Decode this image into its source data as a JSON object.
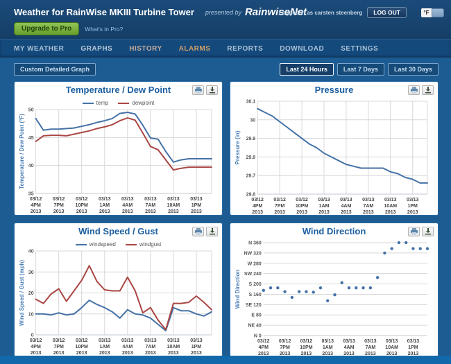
{
  "header": {
    "title": "Weather for RainWise MKIII Turbine Tower",
    "presented_by_label": "presented by",
    "brand": "RainwiseNet",
    "logged_in_text": "Logged in as carsten steenberg",
    "logout_label": "LOG OUT",
    "unit_label": "°F",
    "upgrade_label": "Upgrade to Pro",
    "whats_in_pro_label": "What's in Pro?"
  },
  "nav": {
    "items": [
      {
        "label": "MY WEATHER",
        "color": "#a9c0d4"
      },
      {
        "label": "GRAPHS",
        "color": "#b7c9d8"
      },
      {
        "label": "HISTORY",
        "color": "#c4ab9c"
      },
      {
        "label": "ALARMS",
        "color": "#cf9f68"
      },
      {
        "label": "REPORTS",
        "color": "#a9c0d4"
      },
      {
        "label": "DOWNLOAD",
        "color": "#a9c0d4"
      },
      {
        "label": "SETTINGS",
        "color": "#a9c0d4"
      }
    ]
  },
  "toolbar": {
    "custom_graph_label": "Custom Detailed Graph",
    "range_buttons": [
      {
        "label": "Last 24 Hours",
        "active": true
      },
      {
        "label": "Last 7 Days",
        "active": false
      },
      {
        "label": "Last 30 Days",
        "active": false
      }
    ]
  },
  "colors": {
    "series_blue": "#4572A7",
    "series_red": "#AA4643",
    "page_bg": "#1d5c92",
    "header_bg": "#17426c",
    "nav_bg": "#14497c",
    "footer_bg": "#1169ab",
    "panel_border": "#2a6ca5",
    "chart_title": "#1c5fa0",
    "accent_green": "#76ac3a",
    "alarm_orange": "#cf9f68"
  },
  "chart_data": [
    {
      "type": "line",
      "title": "Temperature / Dew Point",
      "ylabel": "Temperature / Dew Point (°F)",
      "ylim": [
        35,
        50
      ],
      "ytick_values": [
        35,
        40,
        45,
        50
      ],
      "ytick_labels": [
        "35",
        "40",
        "45",
        "50"
      ],
      "grid_vertical": true,
      "x_tick_indices": [
        0,
        3,
        6,
        9,
        12,
        15,
        18,
        21
      ],
      "x_tick_labels": [
        [
          "03/12",
          "4PM",
          "2013"
        ],
        [
          "03/12",
          "7PM",
          "2013"
        ],
        [
          "03/12",
          "10PM",
          "2013"
        ],
        [
          "03/13",
          "1AM",
          "2013"
        ],
        [
          "03/13",
          "4AM",
          "2013"
        ],
        [
          "03/13",
          "7AM",
          "2013"
        ],
        [
          "03/13",
          "10AM",
          "2013"
        ],
        [
          "03/13",
          "1PM",
          "2013"
        ]
      ],
      "series": [
        {
          "name": "temp",
          "color": "#4572A7",
          "values": [
            48.4,
            46.3,
            46.5,
            46.5,
            46.6,
            46.7,
            47.0,
            47.3,
            47.7,
            48.0,
            48.4,
            49.3,
            49.5,
            49.2,
            47.2,
            44.9,
            44.7,
            42.5,
            40.6,
            41.0,
            41.2,
            41.2,
            41.2,
            41.2
          ]
        },
        {
          "name": "dewpoint",
          "color": "#AA4643",
          "values": [
            44.3,
            45.3,
            45.4,
            45.4,
            45.3,
            45.6,
            45.9,
            46.2,
            46.6,
            46.9,
            47.3,
            48.0,
            48.5,
            48.1,
            45.8,
            43.4,
            42.8,
            41.0,
            39.2,
            39.5,
            39.7,
            39.7,
            39.7,
            39.7
          ]
        }
      ]
    },
    {
      "type": "line",
      "title": "Pressure",
      "ylabel": "Pressure (in)",
      "ylim": [
        29.6,
        30.1
      ],
      "ytick_values": [
        29.6,
        29.7,
        29.8,
        29.9,
        30,
        30.1
      ],
      "ytick_labels": [
        "29.6",
        "29.7",
        "29.8",
        "29.9",
        "30",
        "30.1"
      ],
      "grid_vertical": true,
      "x_tick_indices": [
        0,
        3,
        6,
        9,
        12,
        15,
        18,
        21
      ],
      "x_tick_labels": [
        [
          "03/12",
          "4PM",
          "2013"
        ],
        [
          "03/12",
          "7PM",
          "2013"
        ],
        [
          "03/12",
          "10PM",
          "2013"
        ],
        [
          "03/13",
          "1AM",
          "2013"
        ],
        [
          "03/13",
          "4AM",
          "2013"
        ],
        [
          "03/13",
          "7AM",
          "2013"
        ],
        [
          "03/13",
          "10AM",
          "2013"
        ],
        [
          "03/13",
          "1PM",
          "2013"
        ]
      ],
      "series": [
        {
          "name": "pressure",
          "color": "#4572A7",
          "values": [
            30.06,
            30.04,
            30.02,
            29.99,
            29.96,
            29.93,
            29.9,
            29.87,
            29.85,
            29.82,
            29.8,
            29.78,
            29.76,
            29.75,
            29.74,
            29.74,
            29.74,
            29.74,
            29.72,
            29.71,
            29.69,
            29.68,
            29.66,
            29.66
          ]
        }
      ]
    },
    {
      "type": "line",
      "title": "Wind Speed / Gust",
      "ylabel": "Wind Speed / Gust (mph)",
      "ylim": [
        0,
        40
      ],
      "ytick_values": [
        0,
        10,
        20,
        30,
        40
      ],
      "ytick_labels": [
        "0",
        "10",
        "20",
        "30",
        "40"
      ],
      "grid_vertical": true,
      "x_tick_indices": [
        0,
        3,
        6,
        9,
        12,
        15,
        18,
        21
      ],
      "x_tick_labels": [
        [
          "03/12",
          "4PM",
          "2013"
        ],
        [
          "03/12",
          "7PM",
          "2013"
        ],
        [
          "03/12",
          "10PM",
          "2013"
        ],
        [
          "03/13",
          "1AM",
          "2013"
        ],
        [
          "03/13",
          "4AM",
          "2013"
        ],
        [
          "03/13",
          "7AM",
          "2013"
        ],
        [
          "03/13",
          "10AM",
          "2013"
        ],
        [
          "03/13",
          "1PM",
          "2013"
        ]
      ],
      "series": [
        {
          "name": "windspeed",
          "color": "#4572A7",
          "values": [
            10,
            10,
            9.5,
            10.5,
            9.5,
            10,
            13,
            16.5,
            14.5,
            13,
            11,
            8,
            12,
            10,
            9.5,
            8,
            5,
            2,
            13,
            11.5,
            11.5,
            10,
            9,
            11
          ]
        },
        {
          "name": "windgust",
          "color": "#AA4643",
          "values": [
            17,
            15,
            19.5,
            22,
            16,
            21,
            26,
            33,
            25.5,
            21.5,
            21,
            21,
            27.5,
            21,
            10.5,
            13,
            7,
            2.5,
            15,
            15,
            15.5,
            18.5,
            15.5,
            12
          ]
        }
      ]
    },
    {
      "type": "scatter",
      "title": "Wind Direction",
      "ylabel": "Wind Direction",
      "ylim": [
        0,
        360
      ],
      "ytick_values": [
        0,
        40,
        80,
        120,
        160,
        200,
        240,
        280,
        320,
        360
      ],
      "ytick_labels": [
        "N 0",
        "NE 40",
        "E 80",
        "SE 120",
        "S 160",
        "S 200",
        "SW 240",
        "W 280",
        "NW 320",
        "N 360"
      ],
      "grid_vertical": false,
      "x_tick_indices": [
        0,
        3,
        6,
        9,
        12,
        15,
        18,
        21
      ],
      "x_tick_labels": [
        [
          "03/12",
          "4PM",
          "2013"
        ],
        [
          "03/12",
          "7PM",
          "2013"
        ],
        [
          "03/12",
          "10PM",
          "2013"
        ],
        [
          "03/13",
          "1AM",
          "2013"
        ],
        [
          "03/13",
          "4AM",
          "2013"
        ],
        [
          "03/13",
          "7AM",
          "2013"
        ],
        [
          "03/13",
          "10AM",
          "2013"
        ],
        [
          "03/13",
          "1PM",
          "2013"
        ]
      ],
      "series": [
        {
          "name": "winddirection",
          "color": "#4572A7",
          "values": [
            175,
            185,
            185,
            170,
            148,
            170,
            170,
            168,
            185,
            135,
            158,
            205,
            185,
            185,
            185,
            185,
            225,
            320,
            337,
            360,
            360,
            337,
            337,
            337
          ]
        }
      ]
    }
  ]
}
